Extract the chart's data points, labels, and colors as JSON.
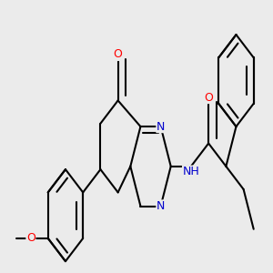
{
  "bg_color": "#EBEBEB",
  "bond_color": "#000000",
  "bond_width": 1.5,
  "atom_colors": {
    "O": "#FF0000",
    "N": "#0000CC",
    "H": "#2F8080"
  },
  "font_size": 9,
  "figsize": [
    3.0,
    3.0
  ],
  "dpi": 100
}
